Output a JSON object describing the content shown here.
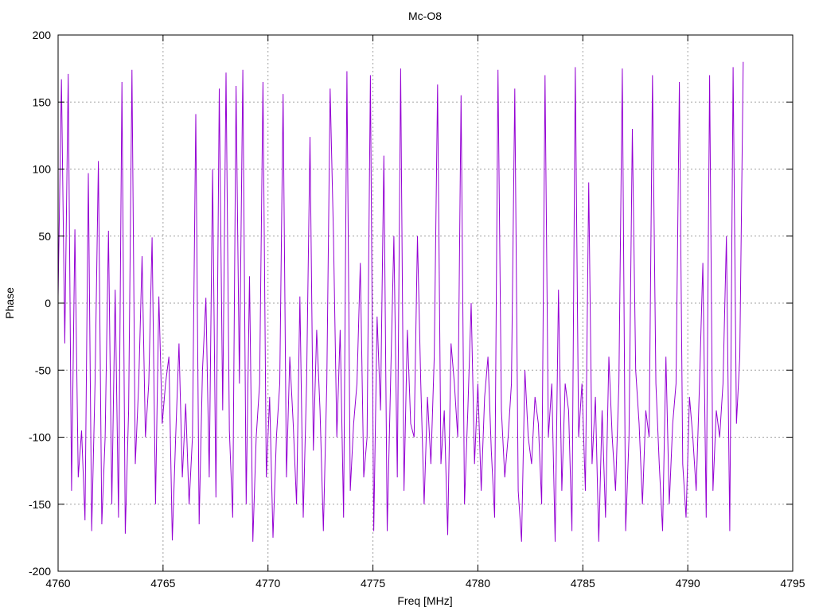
{
  "chart_data": {
    "type": "line",
    "title": "Mc-O8",
    "xlabel": "Freq [MHz]",
    "ylabel": "Phase",
    "xlim": [
      4760,
      4795
    ],
    "ylim": [
      -200,
      200
    ],
    "xticks": [
      4760,
      4765,
      4770,
      4775,
      4780,
      4785,
      4790,
      4795
    ],
    "yticks": [
      -200,
      -150,
      -100,
      -50,
      0,
      50,
      100,
      150,
      200
    ],
    "grid": true,
    "color": "#9400d3",
    "x_start": 4760.0,
    "x_step": 0.16,
    "values": [
      5,
      167,
      -30,
      171,
      -140,
      55,
      -130,
      -95,
      -162,
      97,
      -170,
      -60,
      106,
      -165,
      -100,
      54,
      -150,
      10,
      -160,
      165,
      -172,
      -80,
      174,
      -120,
      -60,
      35,
      -100,
      -60,
      49,
      -150,
      5,
      -90,
      -60,
      -40,
      -177,
      -100,
      -30,
      -130,
      -75,
      -150,
      -100,
      141,
      -165,
      -50,
      4,
      -130,
      100,
      -145,
      160,
      -80,
      172,
      -95,
      -160,
      162,
      -60,
      174,
      -150,
      20,
      -178,
      -100,
      -60,
      165,
      -130,
      -70,
      -175,
      -100,
      -60,
      156,
      -130,
      -40,
      -90,
      -150,
      5,
      -160,
      -60,
      124,
      -110,
      -20,
      -80,
      -170,
      -60,
      160,
      50,
      -100,
      -20,
      -160,
      173,
      -140,
      -90,
      -60,
      30,
      -130,
      -100,
      170,
      -170,
      -10,
      -80,
      110,
      -170,
      -60,
      50,
      -130,
      175,
      -140,
      -20,
      -90,
      -100,
      50,
      -60,
      -150,
      -70,
      -120,
      -40,
      163,
      -120,
      -80,
      -173,
      -30,
      -60,
      -100,
      155,
      -150,
      -80,
      0,
      -120,
      -60,
      -140,
      -70,
      -40,
      -110,
      -160,
      174,
      -80,
      -130,
      -100,
      -60,
      160,
      -140,
      -178,
      -50,
      -100,
      -120,
      -70,
      -90,
      -150,
      170,
      -100,
      -60,
      -178,
      10,
      -140,
      -60,
      -80,
      -170,
      176,
      -100,
      -60,
      -140,
      90,
      -120,
      -70,
      -178,
      -80,
      -160,
      -40,
      -100,
      -140,
      -60,
      175,
      -170,
      -100,
      130,
      -50,
      -90,
      -150,
      -80,
      -100,
      170,
      -60,
      -120,
      -170,
      -40,
      -150,
      -90,
      -60,
      165,
      -120,
      -160,
      -70,
      -100,
      -140,
      -60,
      30,
      -160,
      170,
      -140,
      -80,
      -100,
      -60,
      50,
      -170,
      176,
      -90,
      -40,
      180
    ]
  }
}
